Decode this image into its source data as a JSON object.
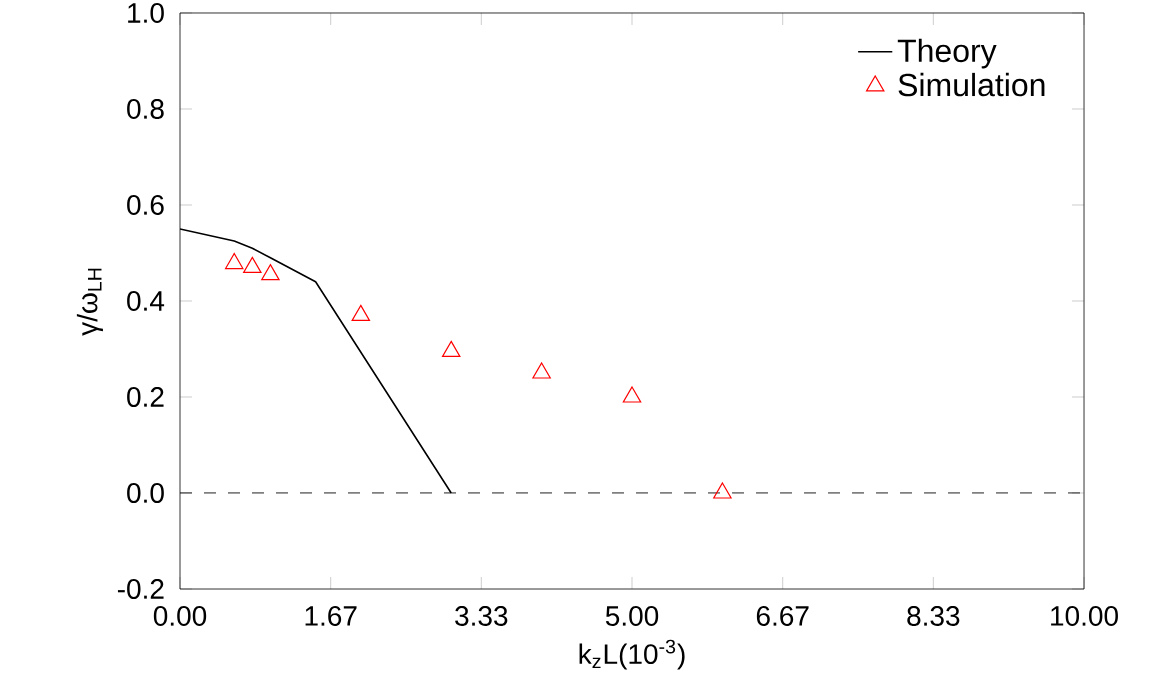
{
  "chart_data": {
    "type": "line",
    "xlabel": "k$_{z}$L(10$^{-3}$)",
    "ylabel": "γ/ω$_{LH}$",
    "xlim": [
      0,
      10
    ],
    "ylim": [
      -0.2,
      1.0
    ],
    "xticks": [
      {
        "value": 0,
        "label": "0.00"
      },
      {
        "value": 1.667,
        "label": "1.67"
      },
      {
        "value": 3.333,
        "label": "3.33"
      },
      {
        "value": 5,
        "label": "5.00"
      },
      {
        "value": 6.667,
        "label": "6.67"
      },
      {
        "value": 8.333,
        "label": "8.33"
      },
      {
        "value": 10,
        "label": "10.00"
      }
    ],
    "yticks": [
      {
        "value": -0.2,
        "label": "-0.2"
      },
      {
        "value": 0,
        "label": "0.0"
      },
      {
        "value": 0.2,
        "label": "0.2"
      },
      {
        "value": 0.4,
        "label": "0.4"
      },
      {
        "value": 0.6,
        "label": "0.6"
      },
      {
        "value": 0.8,
        "label": "0.8"
      },
      {
        "value": 1.0,
        "label": "1.0"
      }
    ],
    "series": [
      {
        "name": "Theory",
        "color": "#000000",
        "line_style": "solid",
        "x": [
          0,
          0.6,
          0.8,
          1.0,
          1.5,
          3.0
        ],
        "values": [
          0.55,
          0.525,
          0.51,
          0.49,
          0.44,
          0.0
        ]
      },
      {
        "name": "Simulation",
        "type": "scatter",
        "color": "#ff0000",
        "marker": "triangle",
        "x": [
          0.6,
          0.8,
          1.0,
          2.0,
          3.0,
          4.0,
          5.0,
          6.0
        ],
        "values": [
          0.478,
          0.47,
          0.455,
          0.37,
          0.295,
          0.25,
          0.2,
          0.0
        ]
      }
    ],
    "ref_lines": [
      {
        "axis": "y",
        "value": 0,
        "color": "#000000",
        "line_style": "dashed"
      }
    ],
    "legend": "top right"
  }
}
